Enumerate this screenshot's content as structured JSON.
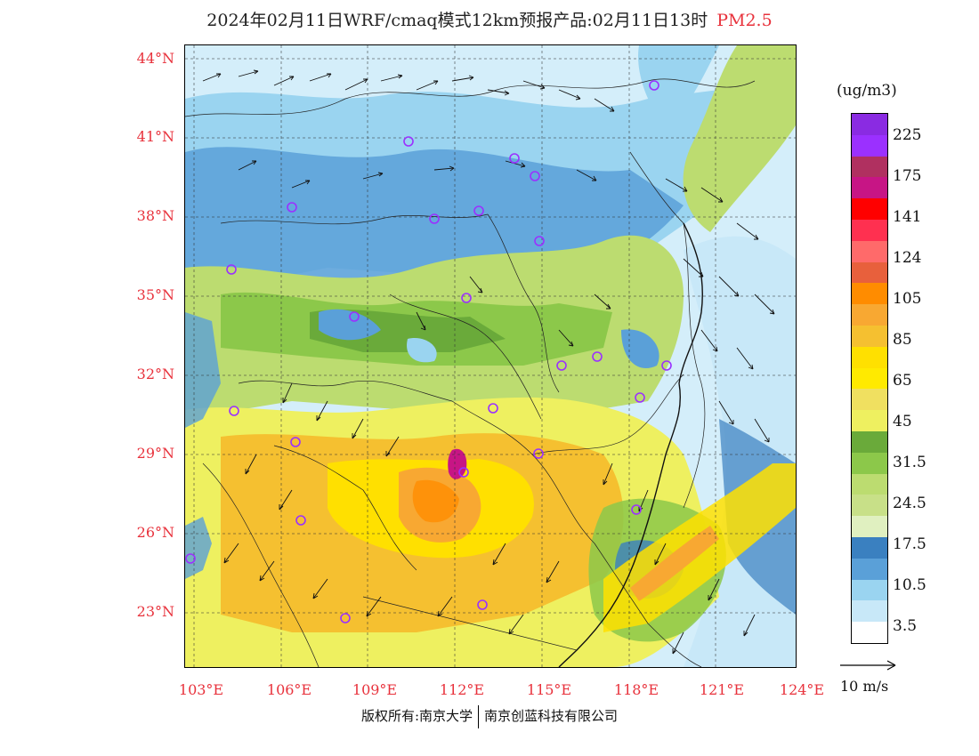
{
  "title": {
    "main": "2024年02月11日WRF/cmaq模式12km预报产品:02月11日13时",
    "pollutant": "PM2.5"
  },
  "lat_labels": [
    "44°N",
    "41°N",
    "38°N",
    "35°N",
    "32°N",
    "29°N",
    "26°N",
    "23°N"
  ],
  "lon_labels": [
    "103°E",
    "106°E",
    "109°E",
    "112°E",
    "115°E",
    "118°E",
    "121°E",
    "124°E"
  ],
  "colorbar": {
    "unit": "(ug/m3)",
    "labels": [
      "225",
      "175",
      "141",
      "124",
      "105",
      "85",
      "65",
      "45",
      "31.5",
      "24.5",
      "17.5",
      "10.5",
      "3.5"
    ],
    "colors": [
      "#8a2be2",
      "#9b30ff",
      "#b03060",
      "#c71585",
      "#ff0000",
      "#ff3050",
      "#ff6a6a",
      "#e8603c",
      "#ff8c00",
      "#f8a832",
      "#f5c030",
      "#ffe000",
      "#ffea00",
      "#f0e060",
      "#eef060",
      "#6aaa3a",
      "#8cc84a",
      "#bcdc70",
      "#c8e088",
      "#e0f0c0",
      "#3a80c0",
      "#5aa0d8",
      "#9ad4f0",
      "#c8e8f8",
      "#ffffff"
    ]
  },
  "wind_legend": {
    "label": "10 m/s"
  },
  "footer": {
    "copyright": "版权所有:南京大学",
    "company": "南京创蓝科技有限公司"
  },
  "colors": {
    "accent": "#e8323c",
    "site_marker": "#9b30ff"
  }
}
